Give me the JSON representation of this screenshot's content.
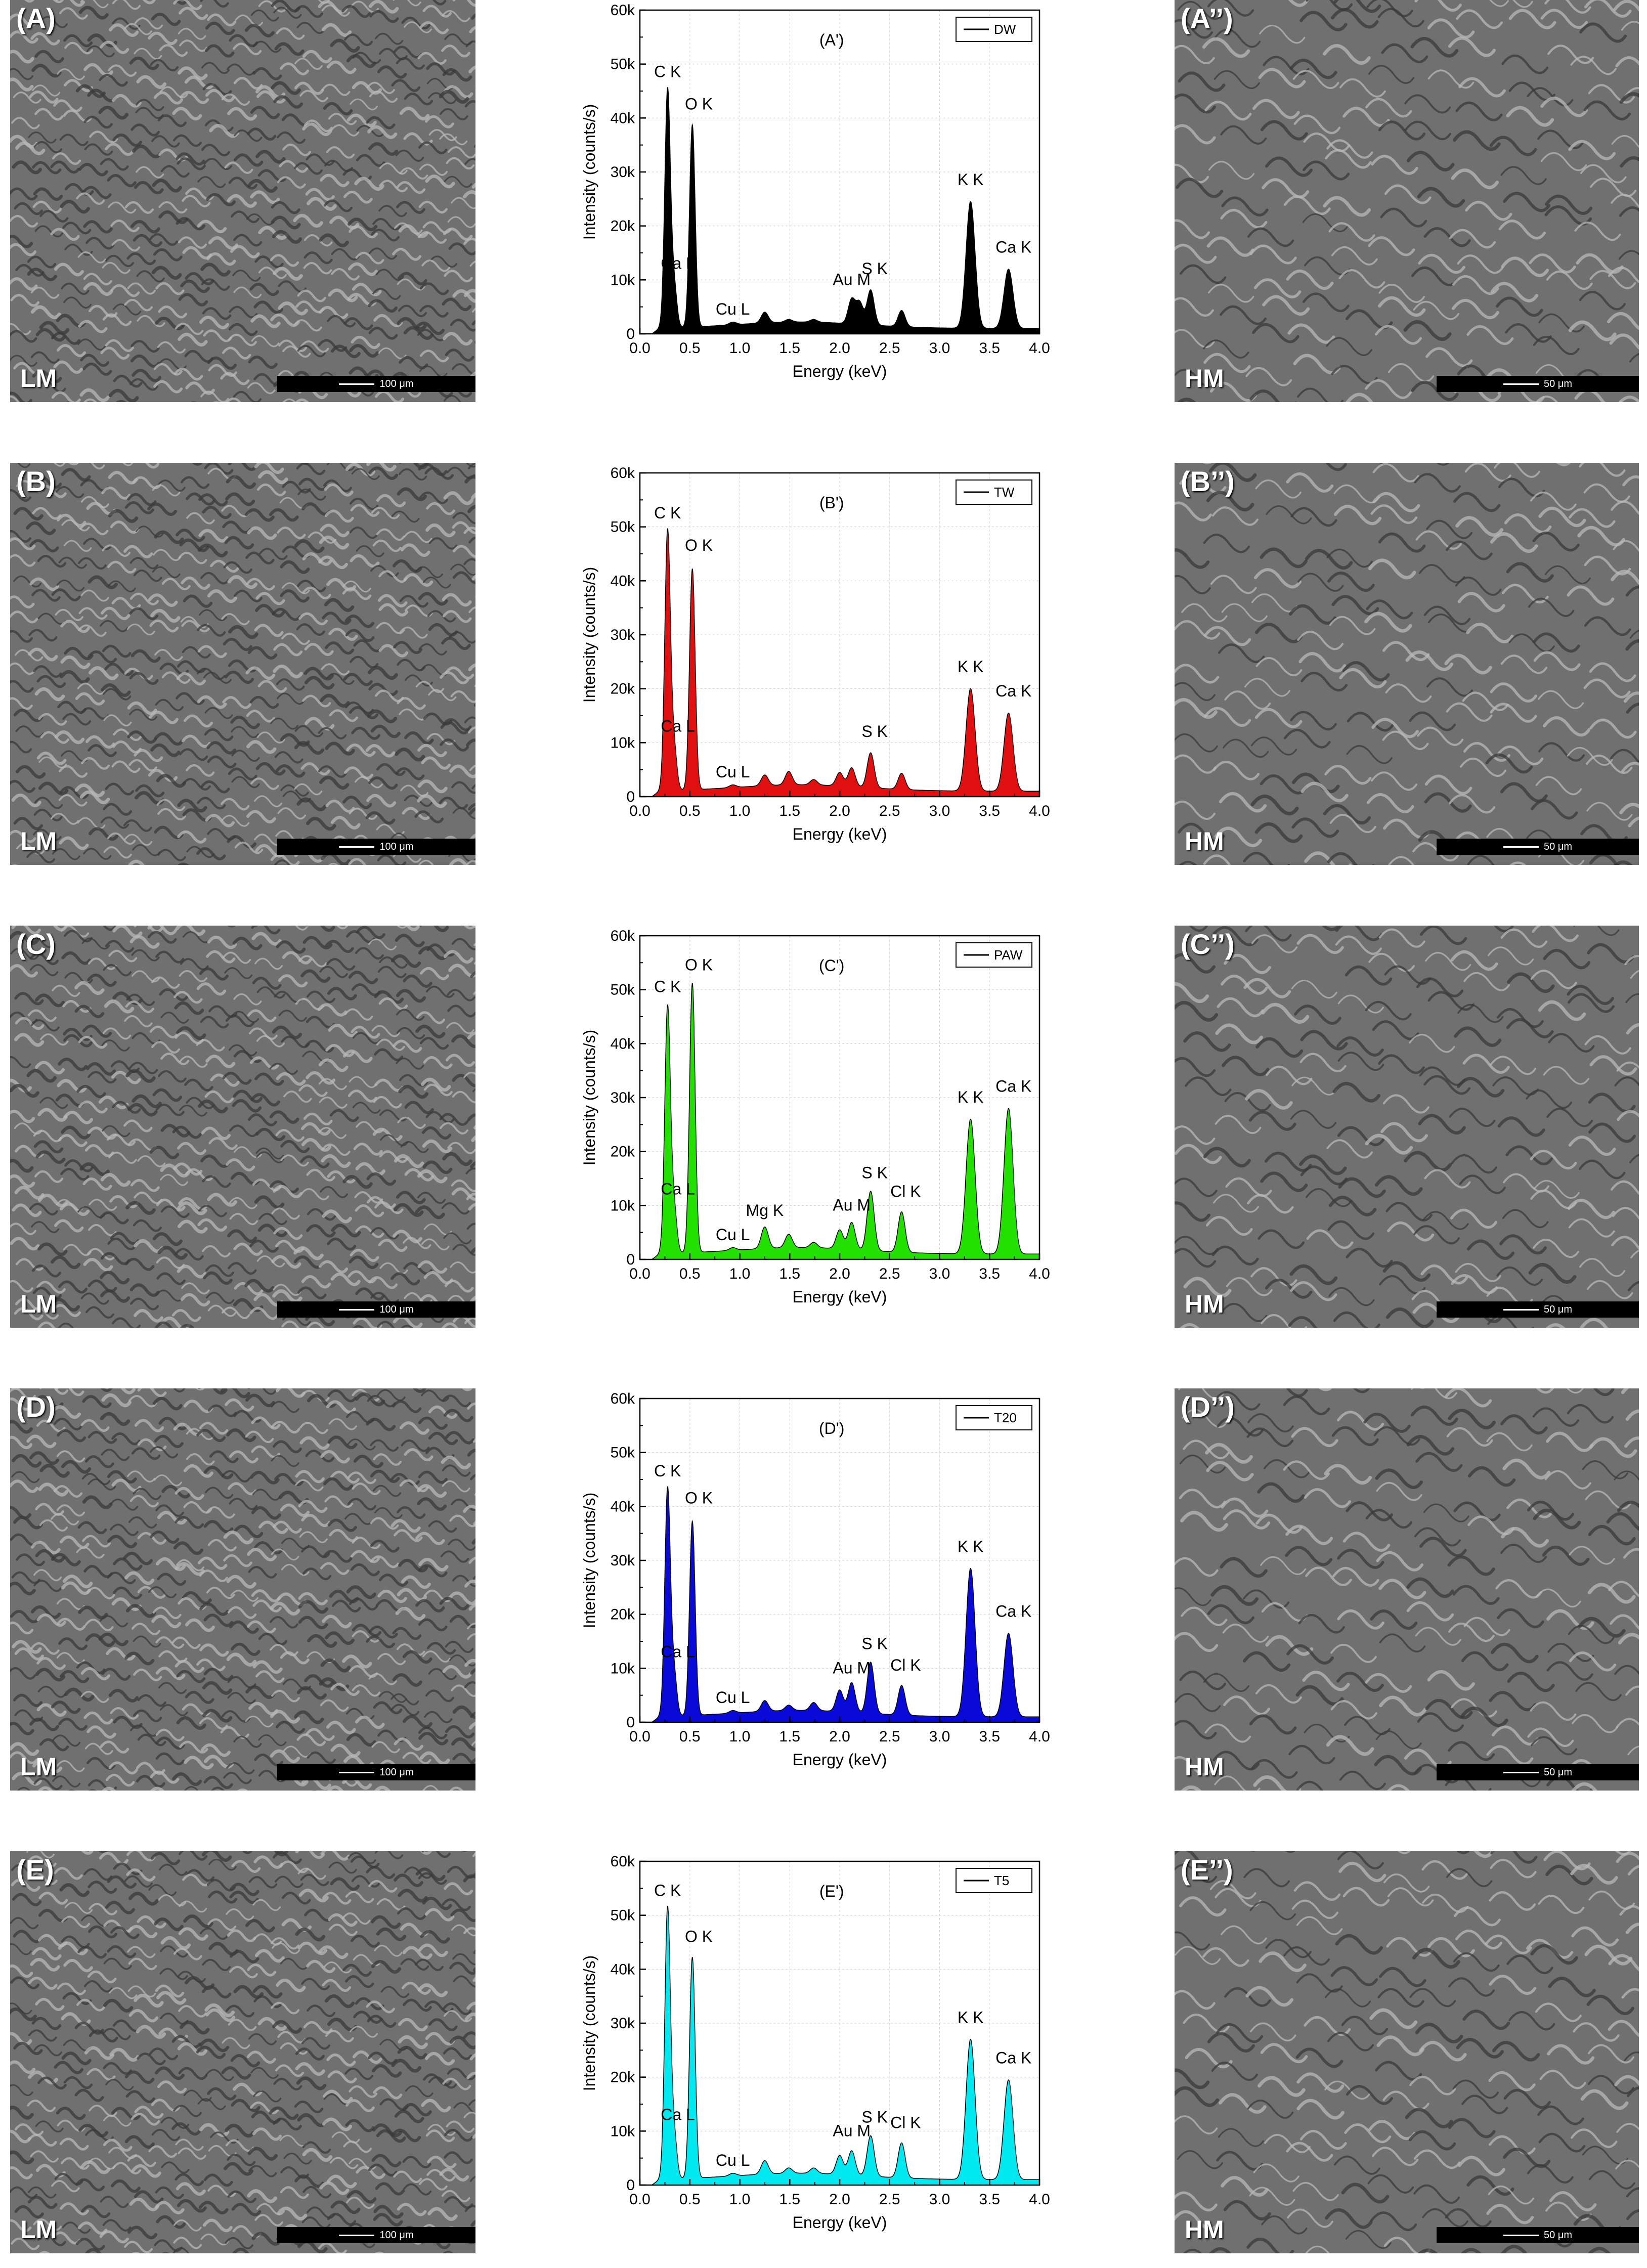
{
  "rows": [
    {
      "sem_left_label": "(A)",
      "sem_left_mag": "LM",
      "sem_left_scale": "100 μm",
      "sem_right_label": "(A’’)",
      "sem_right_mag": "HM",
      "sem_right_scale": "50 μm",
      "chart_color": "#000000"
    },
    {
      "sem_left_label": "(B)",
      "sem_left_mag": "LM",
      "sem_left_scale": "100 μm",
      "sem_right_label": "(B’’)",
      "sem_right_mag": "HM",
      "sem_right_scale": "50 μm",
      "chart_color": "#e01010"
    },
    {
      "sem_left_label": "(C)",
      "sem_left_mag": "LM",
      "sem_left_scale": "100 μm",
      "sem_right_label": "(C’’)",
      "sem_right_mag": "HM",
      "sem_right_scale": "50 μm",
      "chart_color": "#22e000"
    },
    {
      "sem_left_label": "(D)",
      "sem_left_mag": "LM",
      "sem_left_scale": "100 μm",
      "sem_right_label": "(D’’)",
      "sem_right_mag": "HM",
      "sem_right_scale": "50 μm",
      "chart_color": "#0a0ad8"
    },
    {
      "sem_left_label": "(E)",
      "sem_left_mag": "LM",
      "sem_left_scale": "100 μm",
      "sem_right_label": "(E’’)",
      "sem_right_mag": "HM",
      "sem_right_scale": "50 μm",
      "chart_color": "#00e8f0"
    }
  ],
  "chart_data": [
    {
      "type": "area",
      "title": "(A')",
      "xlabel": "Energy (keV)",
      "ylabel": "Intensity (counts/s)",
      "xlim": [
        0.0,
        4.0
      ],
      "ylim": [
        0,
        60000
      ],
      "x_ticks": [
        "0.0",
        "0.5",
        "1.0",
        "1.5",
        "2.0",
        "2.5",
        "3.0",
        "3.5",
        "4.0"
      ],
      "y_ticks": [
        "0",
        "10k",
        "20k",
        "30k",
        "40k",
        "50k",
        "60k"
      ],
      "grid": true,
      "legend_position": "top-right",
      "series": [
        {
          "name": "DW",
          "peaks": [
            [
              0.277,
              45000
            ],
            [
              0.341,
              9000
            ],
            [
              0.525,
              38500
            ],
            [
              0.93,
              1500
            ],
            [
              1.25,
              3000
            ],
            [
              1.49,
              1500
            ],
            [
              1.74,
              1500
            ],
            [
              2.12,
              5500
            ],
            [
              2.2,
              5000
            ],
            [
              2.31,
              7500
            ],
            [
              2.62,
              4000
            ],
            [
              3.31,
              24500
            ],
            [
              3.69,
              12000
            ]
          ]
        }
      ],
      "annotations": [
        {
          "text": "C K",
          "x": 0.277,
          "y": 47000
        },
        {
          "text": "Ca L",
          "x": 0.38,
          "y": 11500
        },
        {
          "text": "O K",
          "x": 0.59,
          "y": 41000
        },
        {
          "text": "Cu L",
          "x": 0.93,
          "y": 3000
        },
        {
          "text": "Au M",
          "x": 2.12,
          "y": 8500
        },
        {
          "text": "S K",
          "x": 2.35,
          "y": 10500
        },
        {
          "text": "K K",
          "x": 3.31,
          "y": 27000
        },
        {
          "text": "Ca K",
          "x": 3.74,
          "y": 14500
        }
      ]
    },
    {
      "type": "area",
      "title": "(B')",
      "xlabel": "Energy (keV)",
      "ylabel": "Intensity (counts/s)",
      "xlim": [
        0.0,
        4.0
      ],
      "ylim": [
        0,
        60000
      ],
      "x_ticks": [
        "0.0",
        "0.5",
        "1.0",
        "1.5",
        "2.0",
        "2.5",
        "3.0",
        "3.5",
        "4.0"
      ],
      "y_ticks": [
        "0",
        "10k",
        "20k",
        "30k",
        "40k",
        "50k",
        "60k"
      ],
      "grid": true,
      "legend_position": "top-right",
      "series": [
        {
          "name": "TW",
          "peaks": [
            [
              0.277,
              49000
            ],
            [
              0.341,
              9000
            ],
            [
              0.525,
              42000
            ],
            [
              0.93,
              1500
            ],
            [
              1.25,
              3000
            ],
            [
              1.49,
              3500
            ],
            [
              1.74,
              2000
            ],
            [
              2.0,
              3500
            ],
            [
              2.12,
              4500
            ],
            [
              2.31,
              7500
            ],
            [
              2.62,
              4000
            ],
            [
              3.31,
              20000
            ],
            [
              3.69,
              15500
            ]
          ]
        }
      ],
      "annotations": [
        {
          "text": "C K",
          "x": 0.277,
          "y": 51000
        },
        {
          "text": "Ca L",
          "x": 0.38,
          "y": 11500
        },
        {
          "text": "O K",
          "x": 0.59,
          "y": 45000
        },
        {
          "text": "Cu L",
          "x": 0.93,
          "y": 3000
        },
        {
          "text": "S K",
          "x": 2.35,
          "y": 10500
        },
        {
          "text": "K K",
          "x": 3.31,
          "y": 22500
        },
        {
          "text": "Ca K",
          "x": 3.74,
          "y": 18000
        }
      ]
    },
    {
      "type": "area",
      "title": "(C')",
      "xlabel": "Energy (keV)",
      "ylabel": "Intensity (counts/s)",
      "xlim": [
        0.0,
        4.0
      ],
      "ylim": [
        0,
        60000
      ],
      "x_ticks": [
        "0.0",
        "0.5",
        "1.0",
        "1.5",
        "2.0",
        "2.5",
        "3.0",
        "3.5",
        "4.0"
      ],
      "y_ticks": [
        "0",
        "10k",
        "20k",
        "30k",
        "40k",
        "50k",
        "60k"
      ],
      "grid": true,
      "legend_position": "top-right",
      "series": [
        {
          "name": "PAW",
          "peaks": [
            [
              0.277,
              46500
            ],
            [
              0.341,
              9500
            ],
            [
              0.525,
              51000
            ],
            [
              0.93,
              1500
            ],
            [
              1.25,
              5000
            ],
            [
              1.49,
              3500
            ],
            [
              1.74,
              2000
            ],
            [
              2.0,
              4500
            ],
            [
              2.12,
              6000
            ],
            [
              2.31,
              12000
            ],
            [
              2.62,
              8500
            ],
            [
              3.31,
              26000
            ],
            [
              3.69,
              28000
            ]
          ]
        }
      ],
      "annotations": [
        {
          "text": "C K",
          "x": 0.277,
          "y": 49000
        },
        {
          "text": "Ca L",
          "x": 0.38,
          "y": 11500
        },
        {
          "text": "O K",
          "x": 0.59,
          "y": 53000
        },
        {
          "text": "Cu L",
          "x": 0.93,
          "y": 3000
        },
        {
          "text": "Mg K",
          "x": 1.25,
          "y": 7500
        },
        {
          "text": "Au M",
          "x": 2.12,
          "y": 8500
        },
        {
          "text": "S K",
          "x": 2.35,
          "y": 14500
        },
        {
          "text": "Cl K",
          "x": 2.66,
          "y": 11000
        },
        {
          "text": "K K",
          "x": 3.31,
          "y": 28500
        },
        {
          "text": "Ca K",
          "x": 3.74,
          "y": 30500
        }
      ]
    },
    {
      "type": "area",
      "title": "(D')",
      "xlabel": "Energy (keV)",
      "ylabel": "Intensity (counts/s)",
      "xlim": [
        0.0,
        4.0
      ],
      "ylim": [
        0,
        60000
      ],
      "x_ticks": [
        "0.0",
        "0.5",
        "1.0",
        "1.5",
        "2.0",
        "2.5",
        "3.0",
        "3.5",
        "4.0"
      ],
      "y_ticks": [
        "0",
        "10k",
        "20k",
        "30k",
        "40k",
        "50k",
        "60k"
      ],
      "grid": true,
      "legend_position": "top-right",
      "series": [
        {
          "name": "T20",
          "peaks": [
            [
              0.277,
              43000
            ],
            [
              0.341,
              9000
            ],
            [
              0.525,
              37000
            ],
            [
              0.93,
              1500
            ],
            [
              1.25,
              3000
            ],
            [
              1.49,
              2000
            ],
            [
              1.74,
              2500
            ],
            [
              2.0,
              5000
            ],
            [
              2.12,
              6500
            ],
            [
              2.31,
              10500
            ],
            [
              2.62,
              6500
            ],
            [
              3.31,
              28500
            ],
            [
              3.69,
              16500
            ]
          ]
        }
      ],
      "annotations": [
        {
          "text": "C K",
          "x": 0.277,
          "y": 45000
        },
        {
          "text": "Ca L",
          "x": 0.38,
          "y": 11500
        },
        {
          "text": "O K",
          "x": 0.59,
          "y": 40000
        },
        {
          "text": "Cu L",
          "x": 0.93,
          "y": 3000
        },
        {
          "text": "Au M",
          "x": 2.12,
          "y": 8500
        },
        {
          "text": "S K",
          "x": 2.35,
          "y": 13000
        },
        {
          "text": "Cl K",
          "x": 2.66,
          "y": 9000
        },
        {
          "text": "K K",
          "x": 3.31,
          "y": 31000
        },
        {
          "text": "Ca K",
          "x": 3.74,
          "y": 19000
        }
      ]
    },
    {
      "type": "area",
      "title": "(E')",
      "xlabel": "Energy (keV)",
      "ylabel": "Intensity (counts/s)",
      "xlim": [
        0.0,
        4.0
      ],
      "ylim": [
        0,
        60000
      ],
      "x_ticks": [
        "0.0",
        "0.5",
        "1.0",
        "1.5",
        "2.0",
        "2.5",
        "3.0",
        "3.5",
        "4.0"
      ],
      "y_ticks": [
        "0",
        "10k",
        "20k",
        "30k",
        "40k",
        "50k",
        "60k"
      ],
      "grid": true,
      "legend_position": "top-right",
      "series": [
        {
          "name": "T5",
          "peaks": [
            [
              0.277,
              51000
            ],
            [
              0.341,
              9500
            ],
            [
              0.525,
              42000
            ],
            [
              0.93,
              1500
            ],
            [
              1.25,
              3500
            ],
            [
              1.49,
              2000
            ],
            [
              1.74,
              2000
            ],
            [
              2.0,
              4500
            ],
            [
              2.12,
              5500
            ],
            [
              2.31,
              8500
            ],
            [
              2.62,
              7500
            ],
            [
              3.31,
              27000
            ],
            [
              3.69,
              19500
            ]
          ]
        }
      ],
      "annotations": [
        {
          "text": "C K",
          "x": 0.277,
          "y": 53000
        },
        {
          "text": "Ca L",
          "x": 0.38,
          "y": 11500
        },
        {
          "text": "O K",
          "x": 0.59,
          "y": 44500
        },
        {
          "text": "Cu L",
          "x": 0.93,
          "y": 3000
        },
        {
          "text": "Au M",
          "x": 2.12,
          "y": 8500
        },
        {
          "text": "S K",
          "x": 2.35,
          "y": 11000
        },
        {
          "text": "Cl K",
          "x": 2.66,
          "y": 10000
        },
        {
          "text": "K K",
          "x": 3.31,
          "y": 29500
        },
        {
          "text": "Ca K",
          "x": 3.74,
          "y": 22000
        }
      ]
    }
  ]
}
